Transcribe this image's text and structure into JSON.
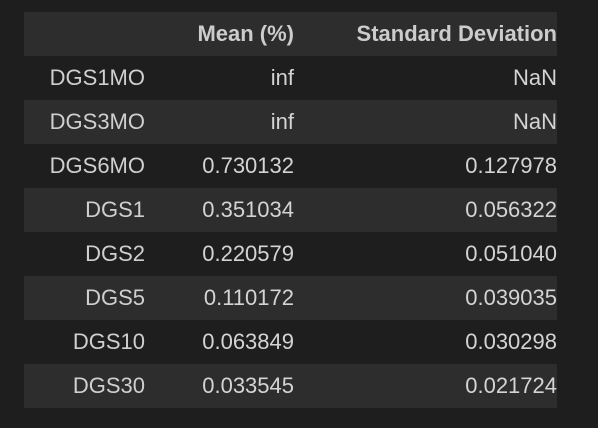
{
  "table": {
    "columns": [
      "",
      "Mean (%)",
      "Standard Deviation"
    ],
    "rows": [
      {
        "index": "DGS1MO",
        "mean": "inf",
        "std": "NaN"
      },
      {
        "index": "DGS3MO",
        "mean": "inf",
        "std": "NaN"
      },
      {
        "index": "DGS6MO",
        "mean": "0.730132",
        "std": "0.127978"
      },
      {
        "index": "DGS1",
        "mean": "0.351034",
        "std": "0.056322"
      },
      {
        "index": "DGS2",
        "mean": "0.220579",
        "std": "0.051040"
      },
      {
        "index": "DGS5",
        "mean": "0.110172",
        "std": "0.039035"
      },
      {
        "index": "DGS10",
        "mean": "0.063849",
        "std": "0.030298"
      },
      {
        "index": "DGS30",
        "mean": "0.033545",
        "std": "0.021724"
      }
    ]
  },
  "colors": {
    "background": "#1e1e1e",
    "stripe": "#2d2d2d",
    "text": "#d4d4d4"
  }
}
